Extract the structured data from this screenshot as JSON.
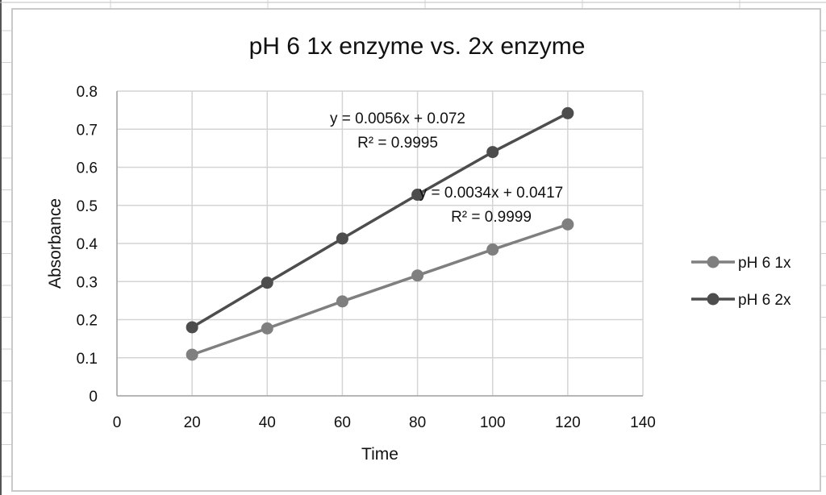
{
  "chart_data": {
    "type": "line",
    "title": "pH 6 1x enzyme vs. 2x enzyme",
    "xlabel": "Time",
    "ylabel": "Absorbance",
    "xlim": [
      0,
      140
    ],
    "ylim": [
      0,
      0.8
    ],
    "x_ticks": [
      "0",
      "20",
      "40",
      "60",
      "80",
      "100",
      "120",
      "140"
    ],
    "y_ticks": [
      "0",
      "0.1",
      "0.2",
      "0.3",
      "0.4",
      "0.5",
      "0.6",
      "0.7",
      "0.8"
    ],
    "grid": true,
    "legend_position": "right",
    "x": [
      20,
      40,
      60,
      80,
      100,
      120
    ],
    "series": [
      {
        "name": "pH 6 1x",
        "color": "#7f7f7f",
        "values": [
          0.108,
          0.177,
          0.248,
          0.316,
          0.384,
          0.45
        ],
        "trendline": {
          "equation": "y = 0.0034x + 0.0417",
          "r2": "R² = 0.9999"
        }
      },
      {
        "name": "pH 6 2x",
        "color": "#4d4d4d",
        "values": [
          0.18,
          0.297,
          0.413,
          0.528,
          0.64,
          0.742
        ],
        "trendline": {
          "equation": "y = 0.0056x + 0.072",
          "r2": "R² = 0.9995"
        }
      }
    ]
  }
}
